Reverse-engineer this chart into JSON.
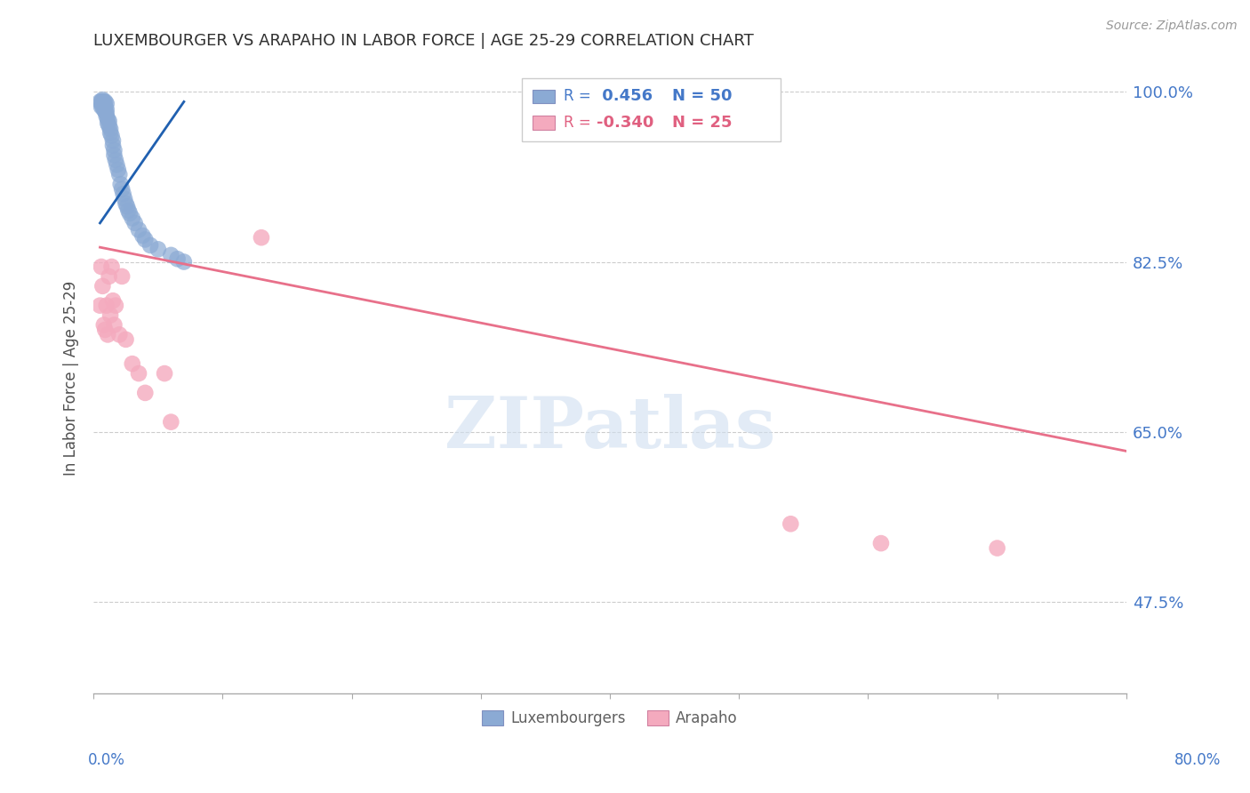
{
  "title": "LUXEMBOURGER VS ARAPAHO IN LABOR FORCE | AGE 25-29 CORRELATION CHART",
  "source": "Source: ZipAtlas.com",
  "ylabel": "In Labor Force | Age 25-29",
  "xlim": [
    0.0,
    0.8
  ],
  "ylim": [
    0.38,
    1.03
  ],
  "watermark": "ZIPatlas",
  "legend_blue_r": "0.456",
  "legend_blue_n": "50",
  "legend_pink_r": "-0.340",
  "legend_pink_n": "25",
  "blue_color": "#8BAAD4",
  "pink_color": "#F4AABE",
  "blue_line_color": "#2060B0",
  "pink_line_color": "#E8708A",
  "title_color": "#303030",
  "right_tick_color": "#4478C8",
  "luxembourgers_x": [
    0.005,
    0.006,
    0.006,
    0.007,
    0.007,
    0.007,
    0.007,
    0.008,
    0.008,
    0.008,
    0.009,
    0.009,
    0.009,
    0.01,
    0.01,
    0.01,
    0.01,
    0.011,
    0.011,
    0.012,
    0.012,
    0.013,
    0.013,
    0.014,
    0.015,
    0.015,
    0.016,
    0.016,
    0.017,
    0.018,
    0.019,
    0.02,
    0.021,
    0.022,
    0.023,
    0.024,
    0.025,
    0.026,
    0.027,
    0.028,
    0.03,
    0.032,
    0.035,
    0.038,
    0.04,
    0.044,
    0.05,
    0.06,
    0.065,
    0.07
  ],
  "luxembourgers_y": [
    0.99,
    0.99,
    0.985,
    0.99,
    0.985,
    0.988,
    0.992,
    0.987,
    0.982,
    0.99,
    0.98,
    0.985,
    0.99,
    0.978,
    0.982,
    0.975,
    0.988,
    0.972,
    0.968,
    0.97,
    0.965,
    0.962,
    0.958,
    0.955,
    0.95,
    0.945,
    0.94,
    0.935,
    0.93,
    0.925,
    0.92,
    0.915,
    0.905,
    0.9,
    0.895,
    0.89,
    0.885,
    0.882,
    0.878,
    0.875,
    0.87,
    0.865,
    0.858,
    0.852,
    0.848,
    0.842,
    0.838,
    0.832,
    0.828,
    0.825
  ],
  "arapaho_x": [
    0.005,
    0.006,
    0.007,
    0.008,
    0.009,
    0.01,
    0.011,
    0.012,
    0.013,
    0.014,
    0.015,
    0.016,
    0.017,
    0.02,
    0.022,
    0.025,
    0.03,
    0.035,
    0.04,
    0.055,
    0.06,
    0.13,
    0.54,
    0.61,
    0.7
  ],
  "arapaho_y": [
    0.78,
    0.82,
    0.8,
    0.76,
    0.755,
    0.78,
    0.75,
    0.81,
    0.77,
    0.82,
    0.785,
    0.76,
    0.78,
    0.75,
    0.81,
    0.745,
    0.72,
    0.71,
    0.69,
    0.71,
    0.66,
    0.85,
    0.555,
    0.535,
    0.53
  ],
  "blue_line_x": [
    0.005,
    0.07
  ],
  "blue_line_y": [
    0.865,
    0.99
  ],
  "pink_line_x": [
    0.005,
    0.8
  ],
  "pink_line_y": [
    0.84,
    0.63
  ]
}
